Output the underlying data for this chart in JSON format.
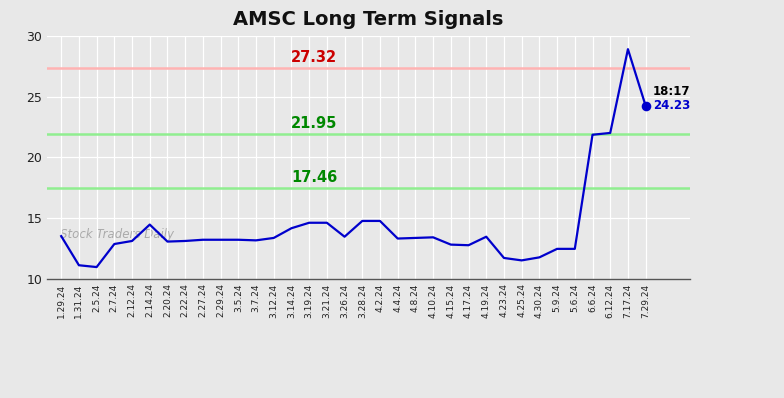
{
  "title": "AMSC Long Term Signals",
  "x_labels": [
    "1.29.24",
    "1.31.24",
    "2.5.24",
    "2.7.24",
    "2.12.24",
    "2.14.24",
    "2.20.24",
    "2.22.24",
    "2.27.24",
    "2.29.24",
    "3.5.24",
    "3.7.24",
    "3.12.24",
    "3.14.24",
    "3.19.24",
    "3.21.24",
    "3.26.24",
    "3.28.24",
    "4.2.24",
    "4.4.24",
    "4.8.24",
    "4.10.24",
    "4.15.24",
    "4.17.24",
    "4.19.24",
    "4.23.24",
    "4.25.24",
    "4.30.24",
    "5.9.24",
    "5.6.24",
    "6.6.24",
    "6.12.24",
    "7.17.24",
    "7.29.24"
  ],
  "y_values": [
    13.5,
    11.1,
    10.95,
    12.85,
    13.1,
    14.45,
    13.05,
    13.1,
    13.2,
    13.2,
    13.2,
    13.15,
    13.35,
    14.15,
    14.6,
    14.6,
    13.45,
    14.75,
    14.75,
    13.3,
    13.35,
    13.4,
    12.8,
    12.75,
    13.45,
    11.7,
    11.5,
    11.75,
    12.45,
    12.45,
    21.85,
    22.0,
    28.9,
    24.23
  ],
  "hline_red": 27.32,
  "hline_green1": 21.95,
  "hline_green2": 17.46,
  "hline_red_color": "#ffb3b3",
  "hline_green1_color": "#90ee90",
  "hline_green2_color": "#90ee90",
  "label_red_color": "#cc0000",
  "label_green_color": "#008800",
  "line_color": "#0000cc",
  "dot_color": "#0000cc",
  "annotation_time": "18:17",
  "annotation_price": "24.23",
  "annotation_color_time": "#000000",
  "annotation_color_price": "#0000cc",
  "watermark": "Stock Traders Daily",
  "watermark_color": "#aaaaaa",
  "ylim_min": 10,
  "ylim_max": 30,
  "yticks": [
    10,
    15,
    20,
    25,
    30
  ],
  "bg_color": "#e8e8e8",
  "plot_bg_color": "#e8e8e8",
  "grid_color": "#ffffff",
  "title_fontsize": 14,
  "label_fontsize": 10.5
}
